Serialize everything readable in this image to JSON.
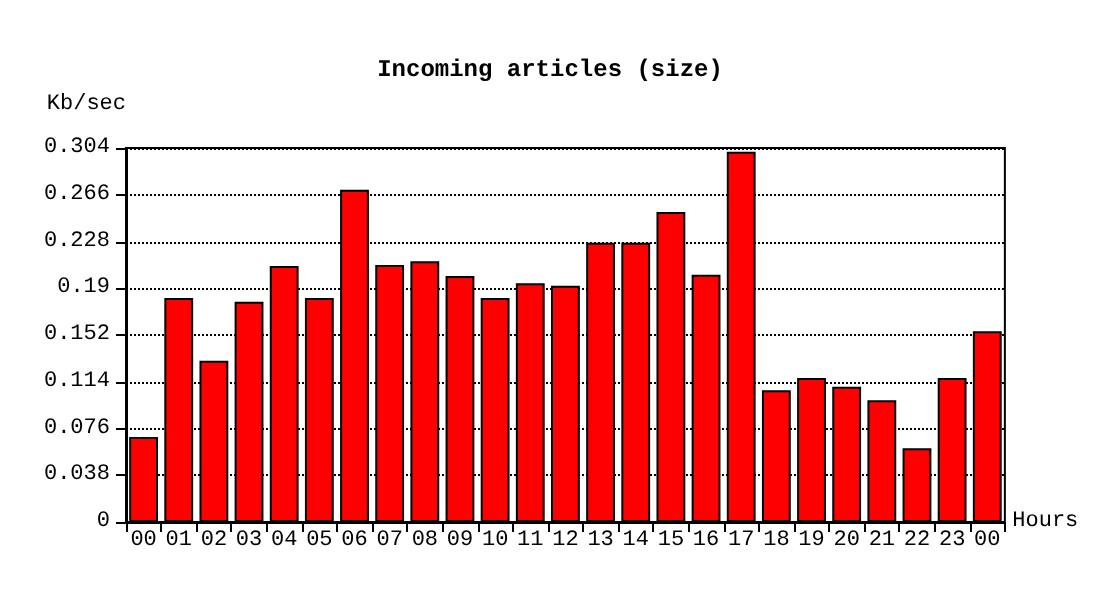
{
  "chart_data": {
    "type": "bar",
    "title": "Incoming articles (size)",
    "ylabel": "Kb/sec",
    "xlabel": "Hours",
    "categories": [
      "00",
      "01",
      "02",
      "03",
      "04",
      "05",
      "06",
      "07",
      "08",
      "09",
      "10",
      "11",
      "12",
      "13",
      "14",
      "15",
      "16",
      "17",
      "18",
      "19",
      "20",
      "21",
      "22",
      "23",
      "00"
    ],
    "values": [
      0.069,
      0.182,
      0.131,
      0.179,
      0.208,
      0.182,
      0.27,
      0.209,
      0.212,
      0.2,
      0.182,
      0.194,
      0.192,
      0.227,
      0.227,
      0.252,
      0.201,
      0.301,
      0.107,
      0.117,
      0.11,
      0.099,
      0.06,
      0.117,
      0.155
    ],
    "color": "#ff0000",
    "ylim": [
      0,
      0.304
    ],
    "yticks": [
      0,
      0.038,
      0.076,
      0.114,
      0.152,
      0.19,
      0.228,
      0.266,
      0.304
    ],
    "grid": "y"
  }
}
